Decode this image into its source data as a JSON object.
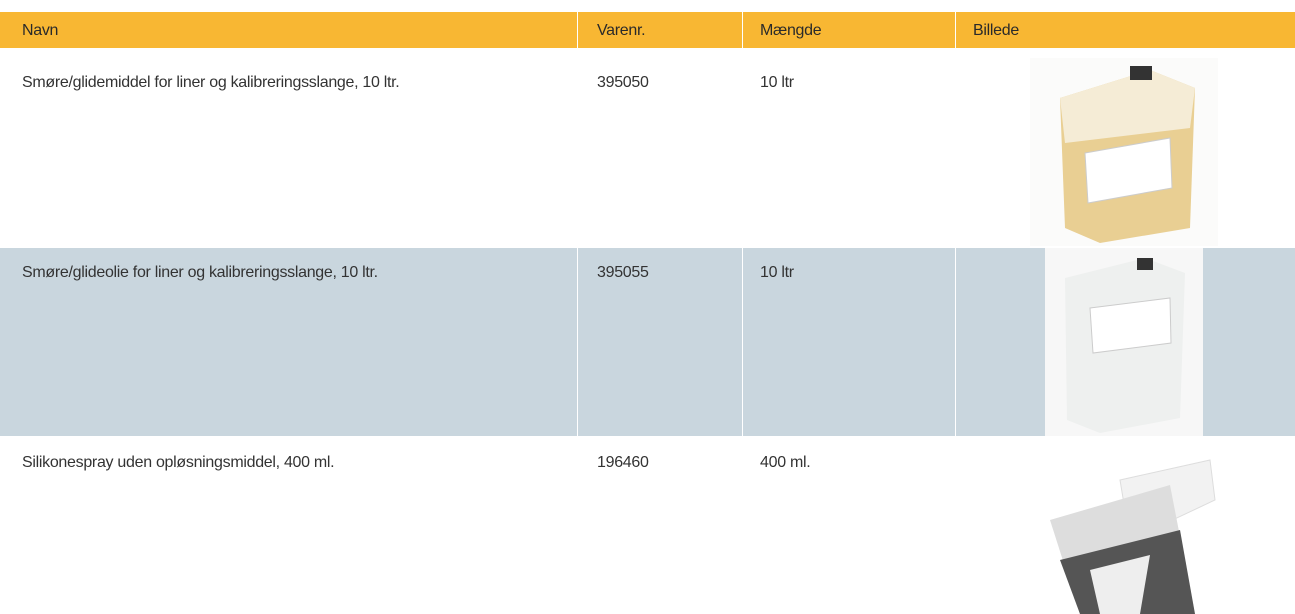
{
  "table": {
    "columns": [
      "Navn",
      "Varenr.",
      "Mængde",
      "Billede"
    ],
    "rows": [
      [
        "Smøre/glidemiddel for liner og kalibreringsslange, 10 ltr.",
        "395050",
        "10 ltr"
      ],
      [
        "Smøre/glideolie for liner og kalibreringsslange, 10 ltr.",
        "395055",
        "10 ltr"
      ],
      [
        "Silikonespray uden opløsningsmiddel, 400 ml.",
        "196460",
        "400 ml."
      ]
    ]
  }
}
